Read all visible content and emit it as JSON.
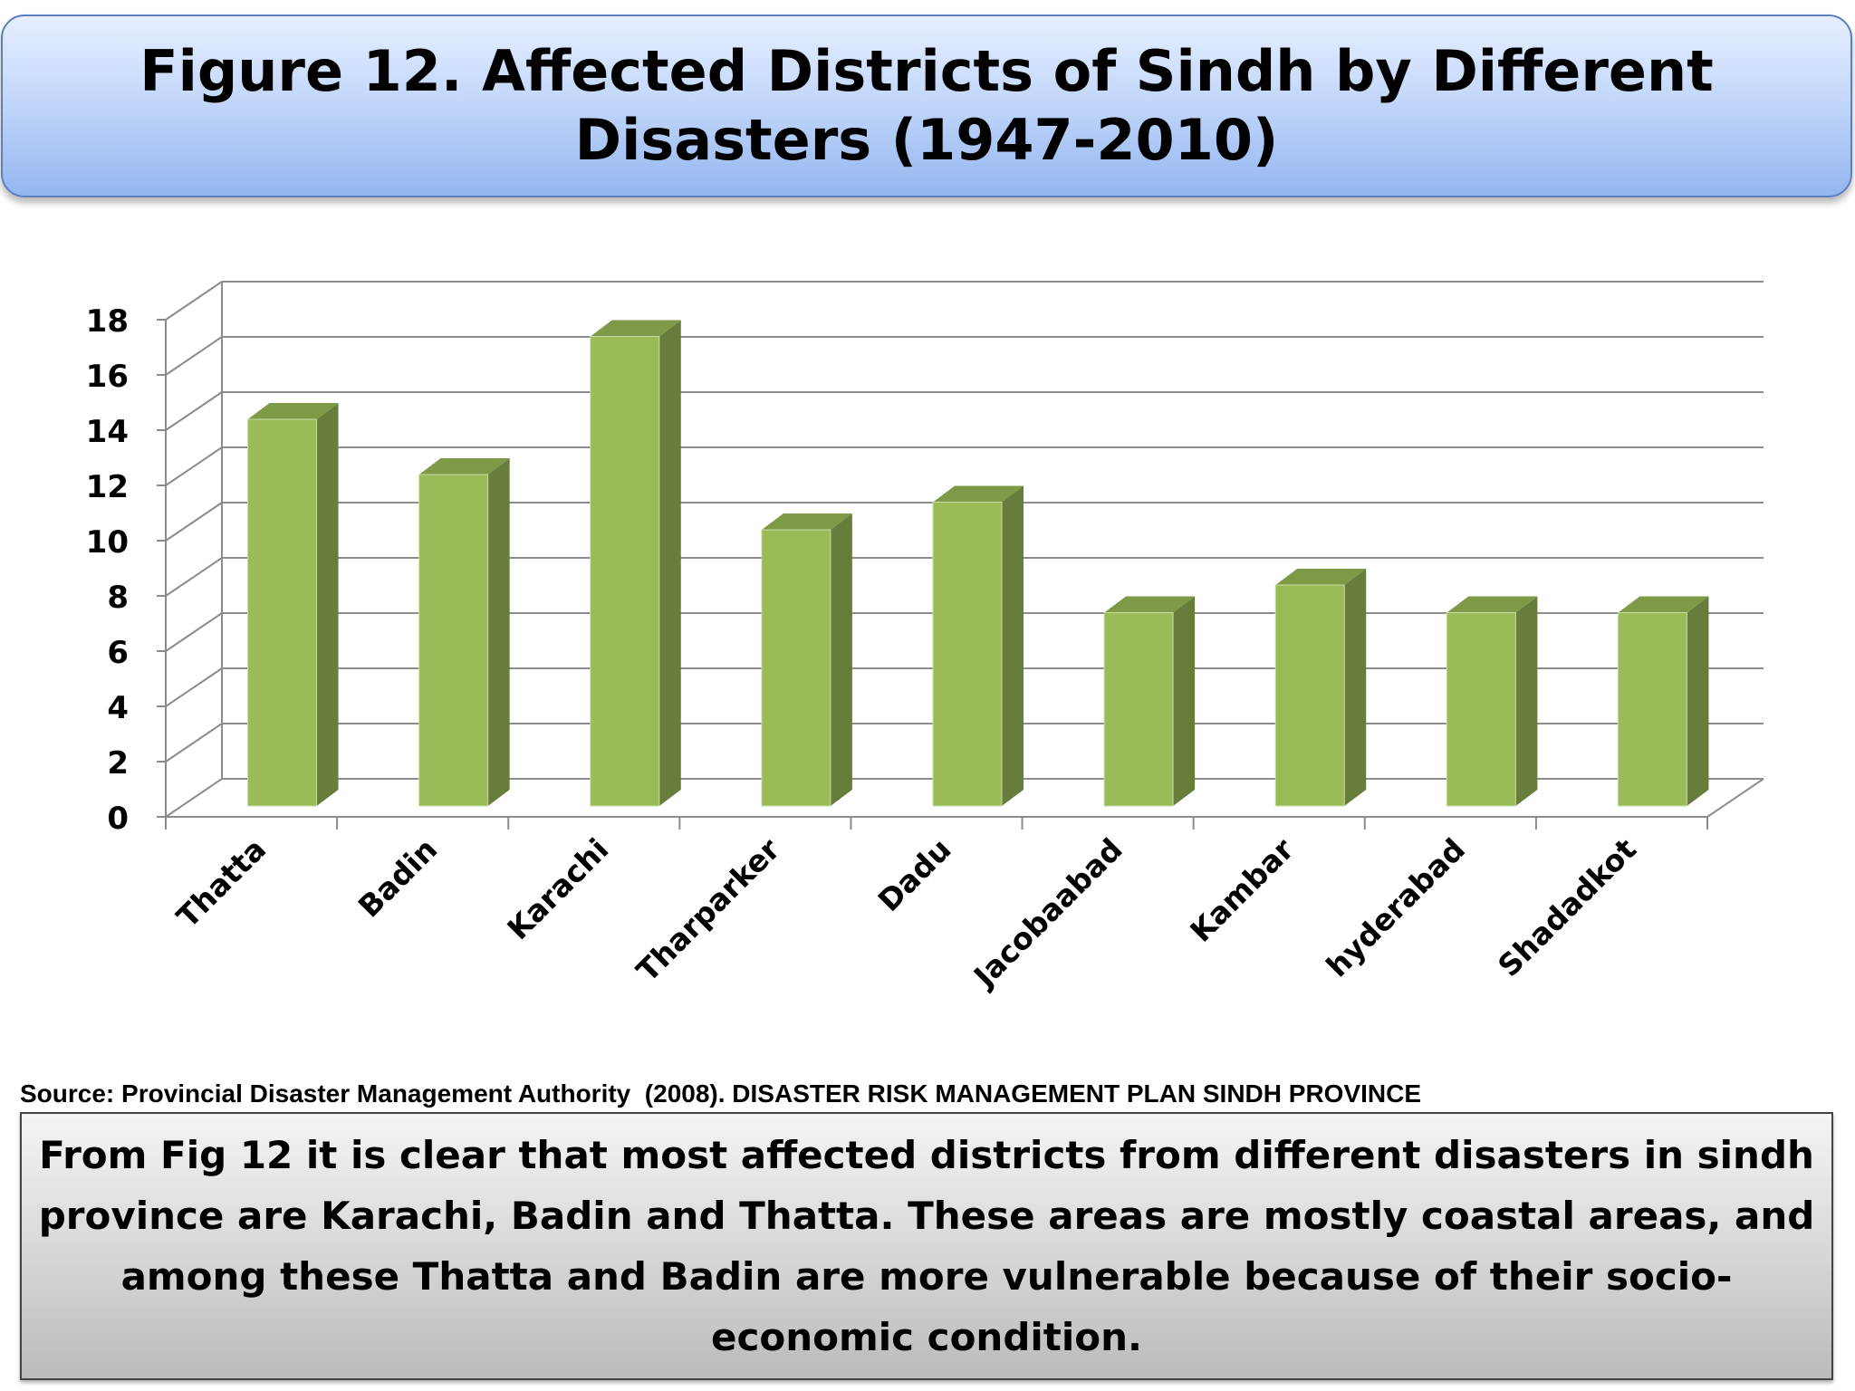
{
  "header": {
    "title": "Figure 12. Affected Districts of Sindh by Different Disasters (1947-2010)"
  },
  "chart_data": {
    "type": "bar",
    "title": "",
    "xlabel": "",
    "ylabel": "",
    "categories": [
      "Thatta",
      "Badin",
      "Karachi",
      "Tharparker",
      "Dadu",
      "Jacobaabad",
      "Kambar",
      "hyderabad",
      "Shadadkot"
    ],
    "values": [
      14,
      12,
      17,
      10,
      11,
      7,
      8,
      7,
      7
    ],
    "ylim": [
      0,
      18
    ],
    "yticks": [
      "0",
      "2",
      "4",
      "6",
      "8",
      "10",
      "12",
      "14",
      "16",
      "18"
    ],
    "style": "3d-column",
    "grid": true,
    "legend": "none",
    "colors": {
      "bar_front": "#9bbb59",
      "bar_side": "#677d3b",
      "bar_top": "#7e9a47",
      "grid": "#8c8c8c"
    }
  },
  "source": "Source: Provincial Disaster Management Authority  (2008). DISASTER RISK MANAGEMENT PLAN SINDH PROVINCE",
  "conclusion": "From Fig 12 it is clear that most affected districts from different disasters in sindh province are Karachi, Badin and Thatta. These areas are mostly coastal areas, and among these Thatta and Badin are more vulnerable because of their socio-economic condition."
}
